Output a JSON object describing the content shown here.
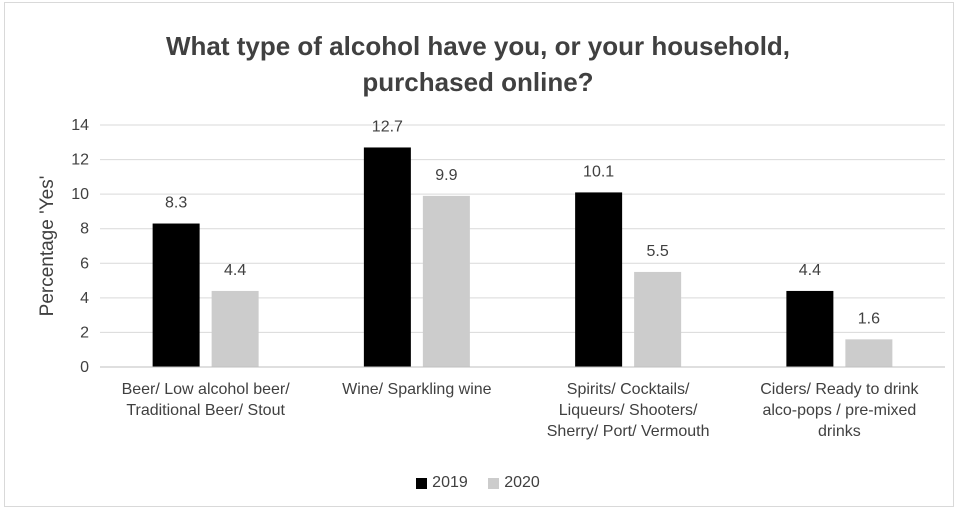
{
  "chart_data": {
    "type": "bar",
    "title_lines": [
      "What type of alcohol have you, or your household,",
      "purchased online?"
    ],
    "ylabel": "Percentage 'Yes'",
    "xlabel": "",
    "ylim": [
      0,
      14
    ],
    "yticks": [
      0,
      2,
      4,
      6,
      8,
      10,
      12,
      14
    ],
    "grid": true,
    "legend_position": "bottom",
    "categories": [
      [
        "Beer/ Low alcohol beer/",
        "Traditional Beer/ Stout"
      ],
      [
        "Wine/ Sparkling wine"
      ],
      [
        "Spirits/ Cocktails/",
        "Liqueurs/ Shooters/",
        "Sherry/ Port/ Vermouth"
      ],
      [
        "Ciders/ Ready to drink",
        "alco-pops / pre-mixed",
        "drinks"
      ]
    ],
    "series": [
      {
        "name": "2019",
        "color": "#000000",
        "values": [
          8.3,
          12.7,
          10.1,
          4.4
        ],
        "labels": [
          "8.3",
          "12.7",
          "10.1",
          "4.4"
        ]
      },
      {
        "name": "2020",
        "color": "#cccccc",
        "values": [
          4.4,
          9.9,
          5.5,
          1.6
        ],
        "labels": [
          "4.4",
          "9.9",
          "5.5",
          "1.6"
        ]
      }
    ]
  }
}
